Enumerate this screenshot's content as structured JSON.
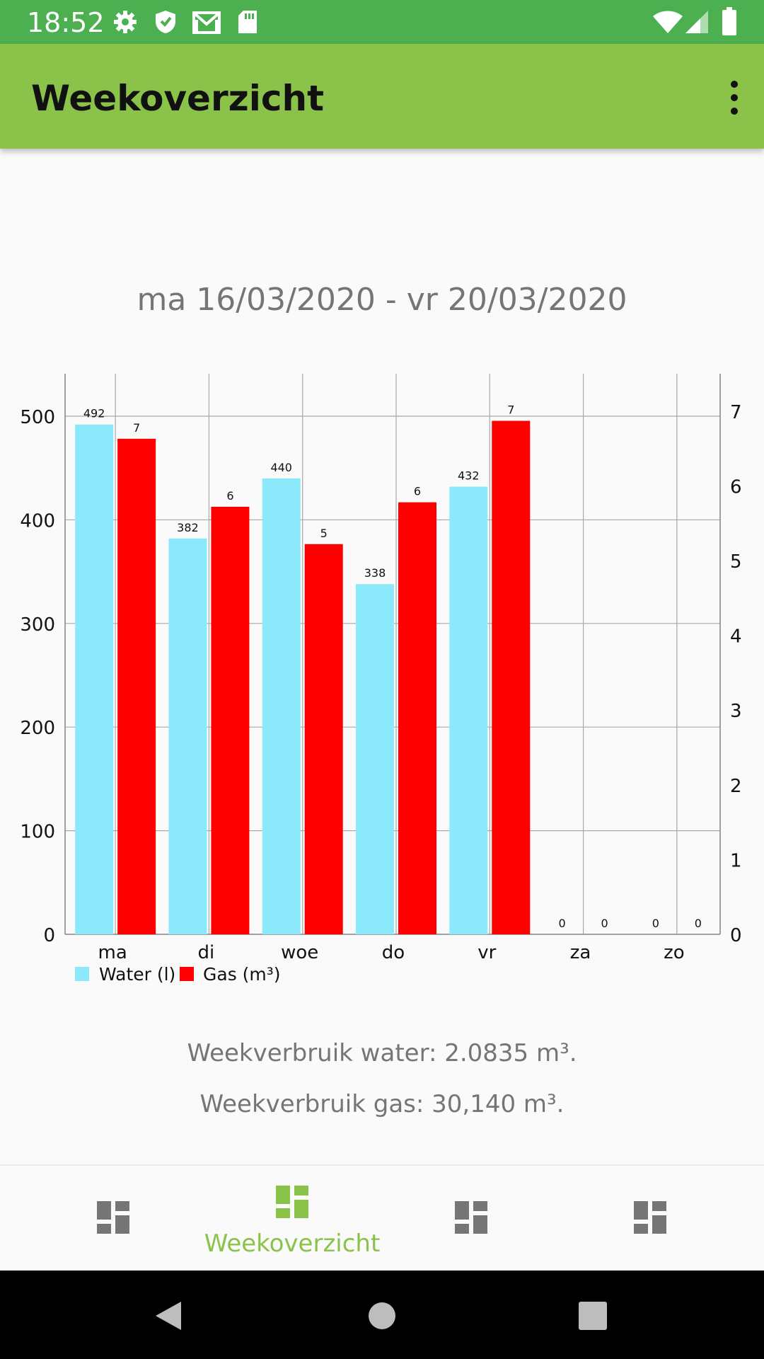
{
  "status_bar": {
    "time": "18:52"
  },
  "app_bar": {
    "title": "Weekoverzicht"
  },
  "date_range": "ma 16/03/2020 - vr 20/03/2020",
  "chart_data": {
    "type": "bar",
    "categories": [
      "ma",
      "di",
      "woe",
      "do",
      "vr",
      "za",
      "zo"
    ],
    "series": [
      {
        "name": "Water (l)",
        "axis": "left",
        "color": "#8ce9fb",
        "values": [
          492,
          382,
          440,
          338,
          432,
          0,
          0
        ]
      },
      {
        "name": "Gas (m³)",
        "axis": "right",
        "color": "#ff0000",
        "values": [
          7,
          6,
          5,
          6,
          7,
          0,
          0
        ]
      }
    ],
    "y_left": {
      "ticks": [
        0,
        100,
        200,
        300,
        400,
        500
      ],
      "range": [
        0,
        541
      ]
    },
    "y_right": {
      "ticks": [
        0,
        1,
        2,
        3,
        4,
        5,
        6,
        7
      ],
      "range": [
        0,
        7.5
      ]
    },
    "gas_bar_levels": [
      6.63,
      5.72,
      5.22,
      5.78,
      6.87,
      0,
      0
    ],
    "legend_position": "bottom-left",
    "grid": true
  },
  "summary": {
    "water": "Weekverbruik water: 2.0835 m³.",
    "gas": "Weekverbruik gas: 30,140 m³."
  },
  "bottom_nav": {
    "items": [
      {
        "label": "",
        "active": false
      },
      {
        "label": "Weekoverzicht",
        "active": true
      },
      {
        "label": "",
        "active": false
      },
      {
        "label": "",
        "active": false
      }
    ]
  },
  "colors": {
    "status_bar": "#4caf50",
    "app_bar": "#8bc34a",
    "accent": "#8bc34a",
    "nav_inactive": "#757575"
  },
  "icons": {
    "status": [
      "settings-icon",
      "shield-icon",
      "gmail-icon",
      "sd-card-icon",
      "wifi-icon",
      "signal-icon",
      "battery-icon"
    ],
    "nav": [
      "dashboard-icon",
      "dashboard-icon",
      "dashboard-icon",
      "dashboard-icon"
    ],
    "system_nav": [
      "back-icon",
      "home-icon",
      "recents-icon"
    ]
  }
}
